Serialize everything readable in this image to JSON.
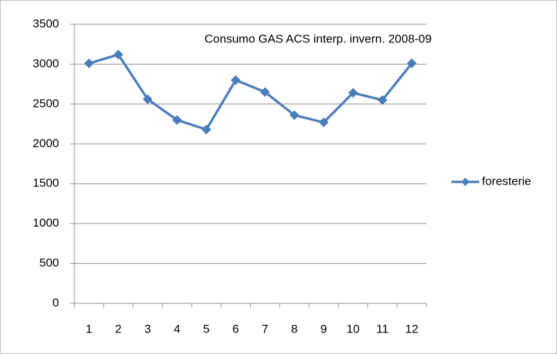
{
  "chart_data": {
    "type": "line",
    "title": "Consumo GAS ACS interp. invern. 2008-09",
    "categories": [
      "1",
      "2",
      "3",
      "4",
      "5",
      "6",
      "7",
      "8",
      "9",
      "10",
      "11",
      "12"
    ],
    "series": [
      {
        "name": "foresterie",
        "color": "#4a7ebb",
        "values": [
          3010,
          3120,
          2560,
          2300,
          2180,
          2800,
          2650,
          2360,
          2270,
          2640,
          2550,
          3010
        ]
      }
    ],
    "ylim": [
      0,
      3500
    ],
    "yticks": [
      0,
      500,
      1000,
      1500,
      2000,
      2500,
      3000,
      3500
    ],
    "grid": true,
    "legend": "right"
  }
}
